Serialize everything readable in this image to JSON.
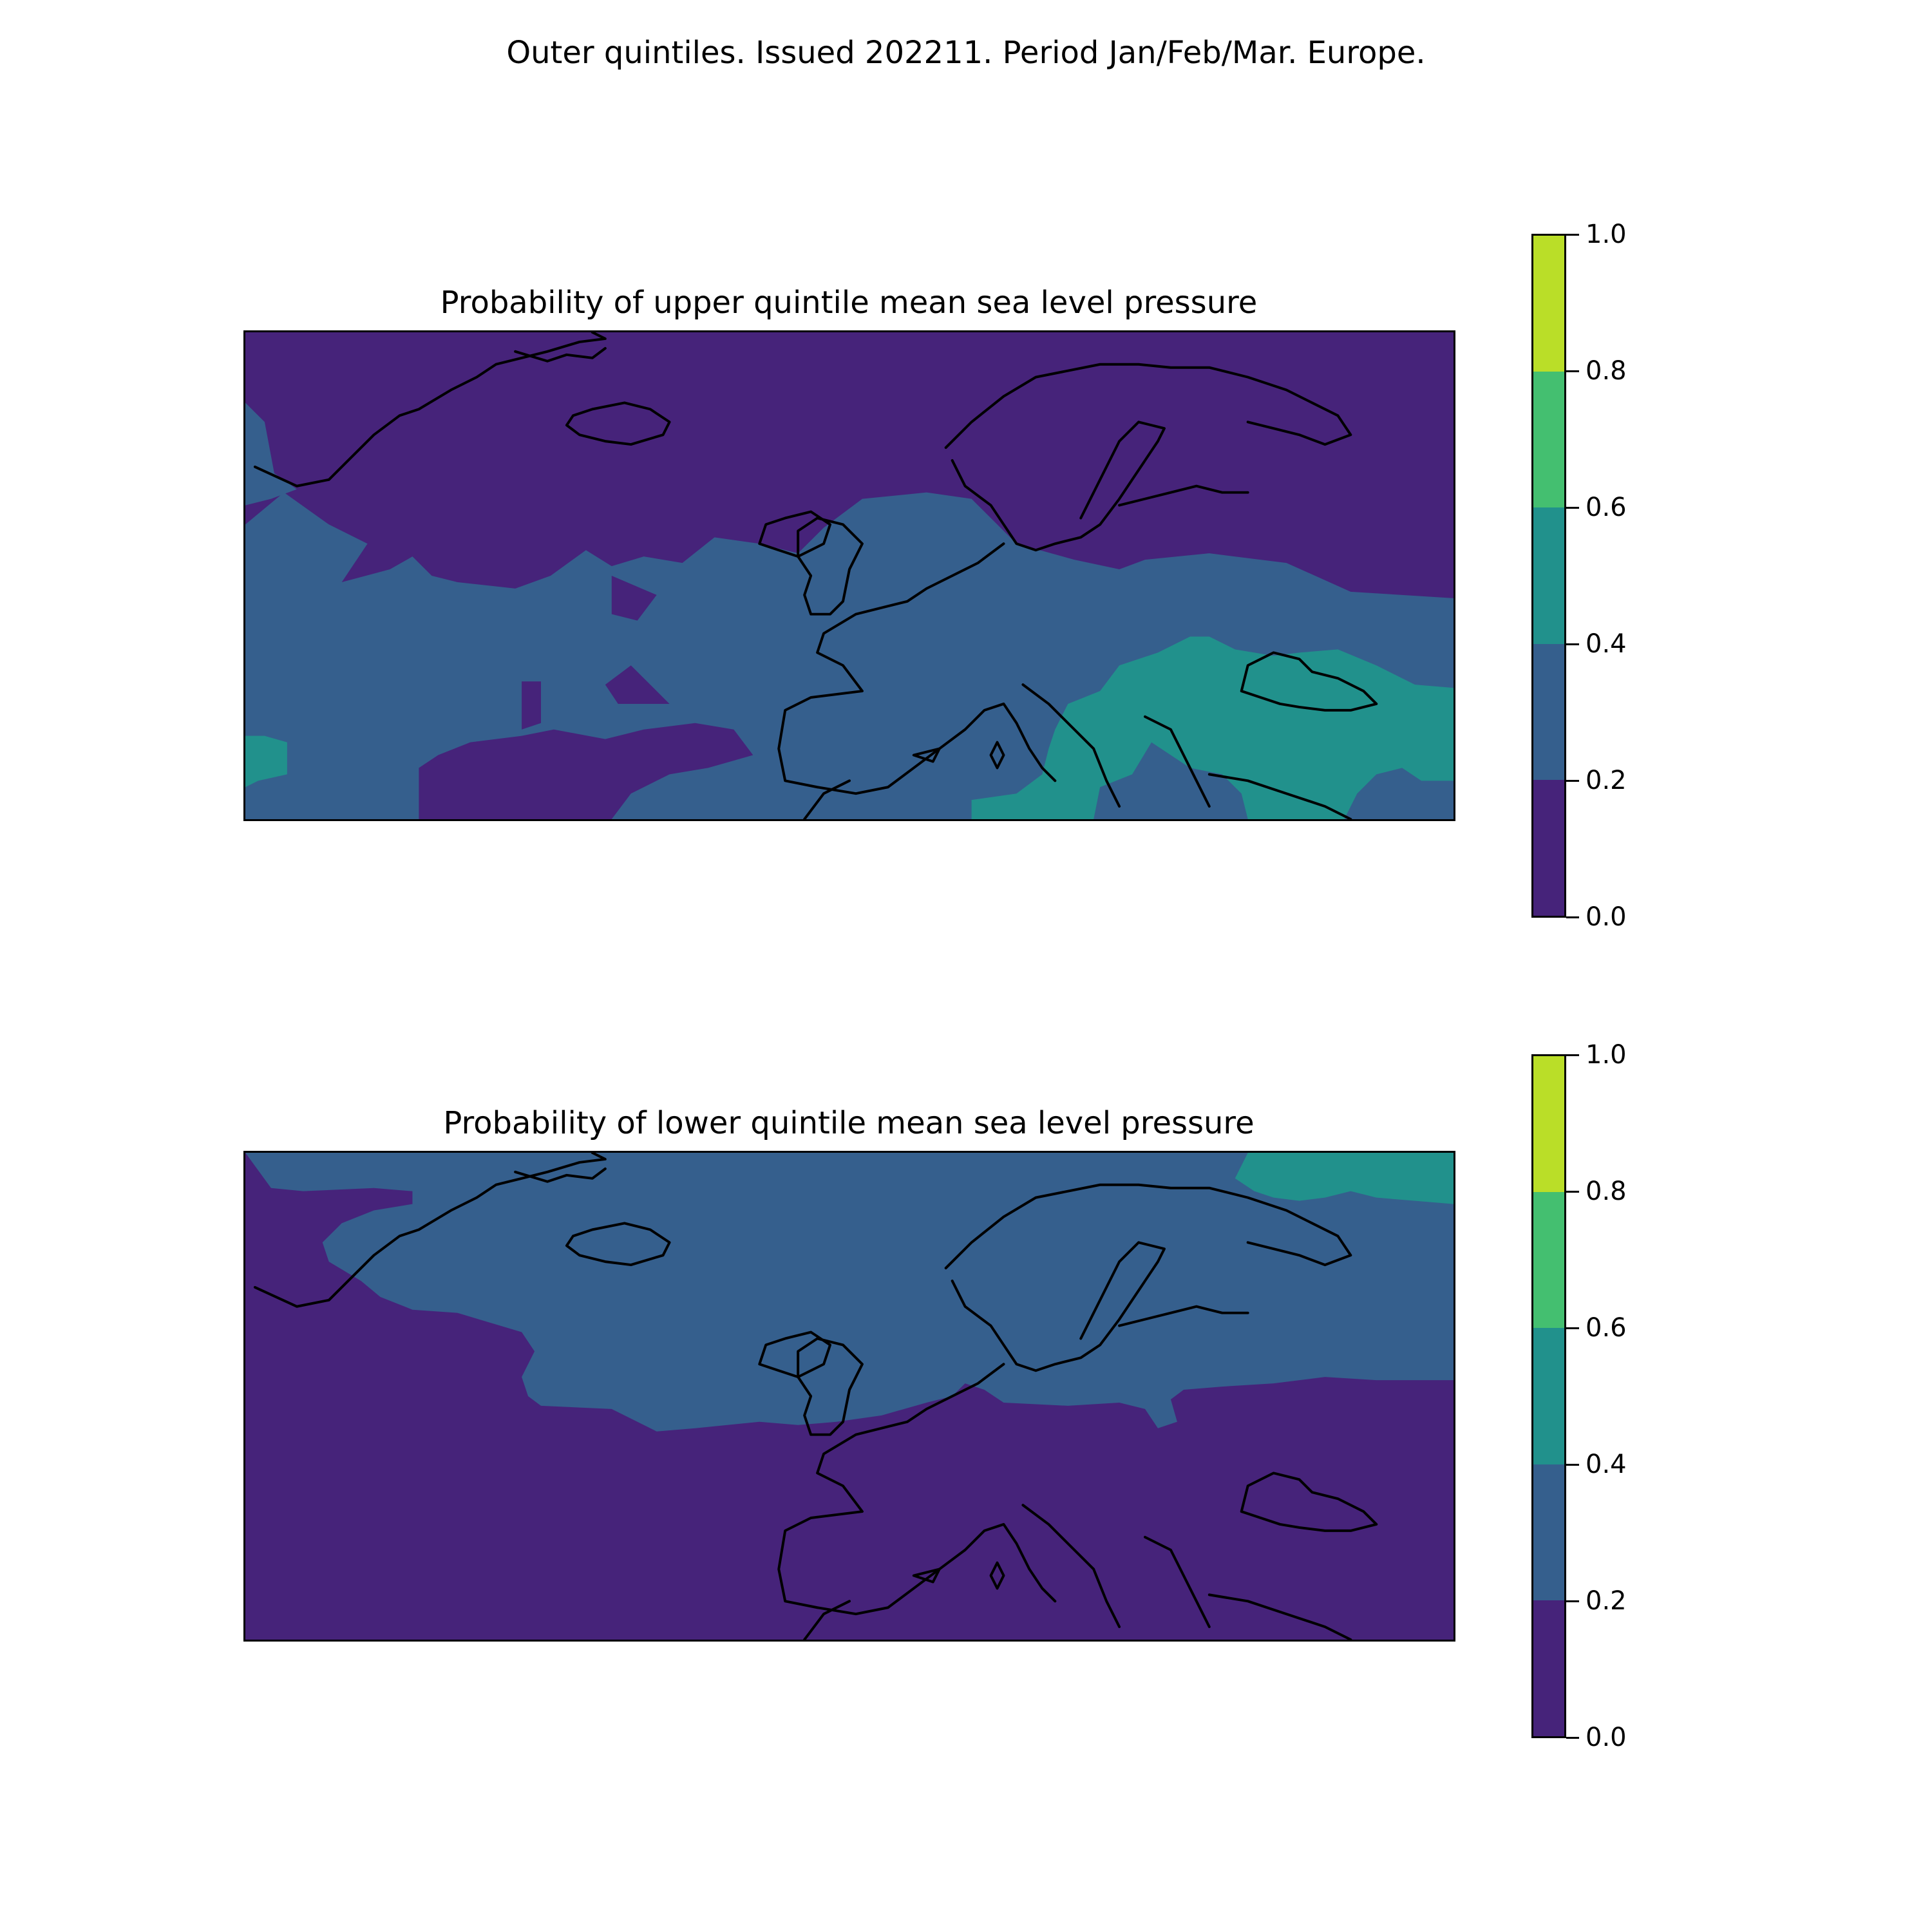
{
  "figure_title": "Outer quintiles. Issued 202211. Period Jan/Feb/Mar. Europe.",
  "panels": [
    {
      "id": "upper",
      "title": "Probability of upper quintile mean sea level pressure",
      "colorbar_ticks": [
        "0.0",
        "0.2",
        "0.4",
        "0.6",
        "0.8",
        "1.0"
      ]
    },
    {
      "id": "lower",
      "title": "Probability of lower quintile mean sea level pressure",
      "colorbar_ticks": [
        "0.0",
        "0.2",
        "0.4",
        "0.6",
        "0.8",
        "1.0"
      ]
    }
  ],
  "colorbar": {
    "levels": [
      0.0,
      0.2,
      0.4,
      0.6,
      0.8,
      1.0
    ],
    "colors": [
      "#46237a",
      "#355f8d",
      "#21918c",
      "#44bf70",
      "#bade28"
    ]
  }
}
